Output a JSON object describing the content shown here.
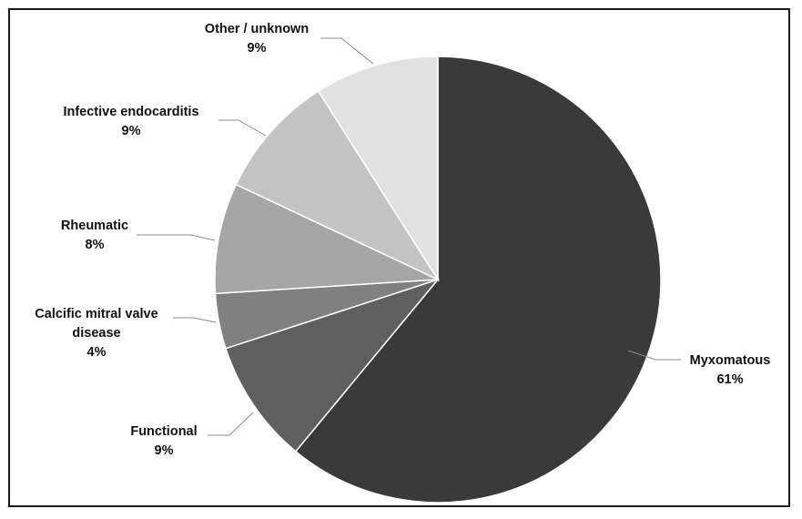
{
  "chart_data": {
    "type": "pie",
    "title": "",
    "start_angle_deg": 0,
    "direction": "clockwise",
    "slice_border": "#ffffff",
    "slices": [
      {
        "name": "Myxomatous",
        "value": 61,
        "label": "61%",
        "color": "#3a3a3a"
      },
      {
        "name": "Functional",
        "value": 9,
        "label": "9%",
        "color": "#5f5f5f"
      },
      {
        "name": "Calcific mitral valve disease",
        "value": 4,
        "label": "4%",
        "color": "#808080"
      },
      {
        "name": "Rheumatic",
        "value": 8,
        "label": "8%",
        "color": "#a6a6a6"
      },
      {
        "name": "Infective endocarditis",
        "value": 9,
        "label": "9%",
        "color": "#c3c3c3"
      },
      {
        "name": "Other / unknown",
        "value": 9,
        "label": "9%",
        "color": "#e1e1e1"
      }
    ]
  }
}
